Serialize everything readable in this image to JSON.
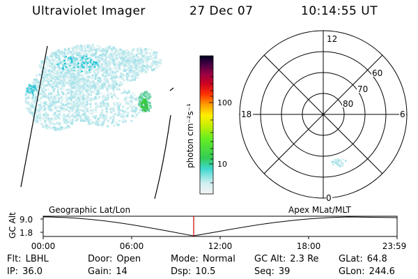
{
  "header": {
    "instrument": "Ultraviolet Imager",
    "date": "27 Dec 07",
    "time": "10:14:55 UT"
  },
  "colorbar": {
    "label": "photon cm⁻²s⁻¹",
    "ticks": [
      "10",
      "100"
    ]
  },
  "polar_plot": {
    "mlt_labels": {
      "top": "12",
      "left": "18",
      "right": "6",
      "bottom": "0"
    },
    "lat_labels": [
      "60",
      "70",
      "80"
    ]
  },
  "orbit_panel": {
    "y_axis_label": "GC Alt",
    "y_ticks": [
      "9.0",
      "1.8"
    ],
    "left_title": "Geographic Lat/Lon",
    "right_title": "Apex MLat/MLT",
    "x_ticks": [
      "00:00",
      "06:00",
      "12:00",
      "18:00",
      "23:59"
    ]
  },
  "info_rows": [
    [
      {
        "key": "Flt:",
        "value": "LBHL"
      },
      {
        "key": "Door:",
        "value": "Open"
      },
      {
        "key": "Mode:",
        "value": "Normal"
      },
      {
        "key": "GC Alt:",
        "value": "2.3 Re"
      },
      {
        "key": "GLat:",
        "value": "64.8"
      }
    ],
    [
      {
        "key": "IP:",
        "value": "36.0"
      },
      {
        "key": "Gain:",
        "value": "14"
      },
      {
        "key": "Dsp:",
        "value": "10.5"
      },
      {
        "key": "Seq:",
        "value": "39"
      },
      {
        "key": "GLon:",
        "value": "244.6"
      }
    ]
  ],
  "colors": {
    "marker": "#cc0000",
    "aurora_faint": "#cfeef0",
    "aurora_bright": "#22c6d6",
    "hotspot": "#33cc33"
  }
}
